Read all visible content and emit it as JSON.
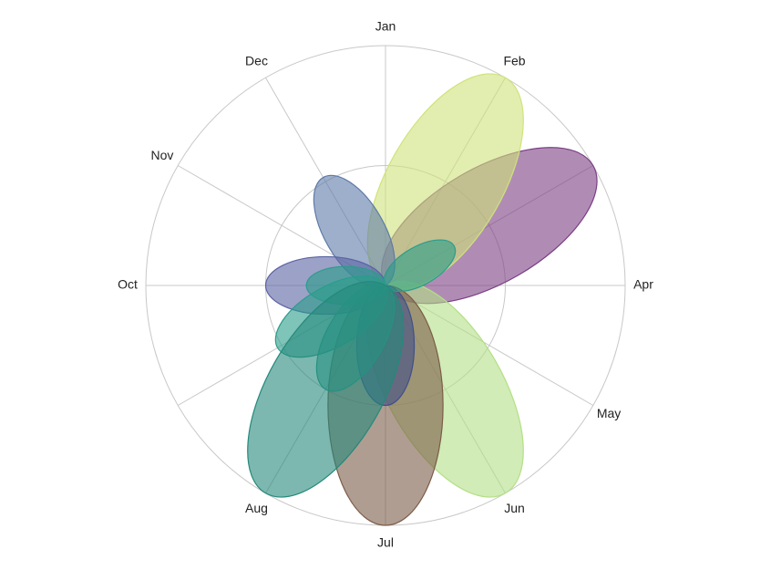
{
  "chart_data": {
    "type": "polar-petal",
    "categories": [
      "Jan",
      "Feb",
      null,
      "Apr",
      "May",
      "Jun",
      "Jul",
      "Aug",
      null,
      "Oct",
      "Nov",
      "Dec"
    ],
    "rlim": [
      0,
      100
    ],
    "rticks": [
      50,
      100
    ],
    "grid": true,
    "opacity": 0.6,
    "series": [
      {
        "color": "#7b3f84",
        "values": [
          null,
          null,
          100,
          null,
          null,
          null,
          null,
          null,
          null,
          null,
          null,
          null
        ]
      },
      {
        "color": "#cfe37a",
        "values": [
          null,
          100,
          null,
          null,
          null,
          null,
          null,
          null,
          null,
          null,
          null,
          null
        ]
      },
      {
        "color": "#b3df86",
        "values": [
          null,
          null,
          null,
          null,
          null,
          100,
          null,
          null,
          null,
          null,
          null,
          null
        ]
      },
      {
        "color": "#7c5c48",
        "values": [
          null,
          null,
          null,
          null,
          null,
          null,
          100,
          null,
          null,
          null,
          null,
          null
        ]
      },
      {
        "color": "#3f4f8a",
        "values": [
          null,
          null,
          null,
          null,
          null,
          null,
          50,
          null,
          null,
          null,
          null,
          null
        ]
      },
      {
        "color": "#5d7aa8",
        "values": [
          null,
          null,
          null,
          null,
          null,
          null,
          null,
          null,
          null,
          null,
          null,
          52
        ]
      },
      {
        "color": "#5a63a3",
        "values": [
          null,
          null,
          null,
          null,
          null,
          null,
          null,
          null,
          null,
          50,
          null,
          null
        ]
      },
      {
        "color": "#2a9d8a",
        "values": [
          null,
          null,
          33,
          null,
          null,
          null,
          null,
          50,
          52,
          33,
          null,
          null
        ]
      },
      {
        "color": "#24897b",
        "values": [
          null,
          null,
          null,
          null,
          null,
          null,
          null,
          100,
          null,
          null,
          null,
          null
        ]
      }
    ]
  }
}
